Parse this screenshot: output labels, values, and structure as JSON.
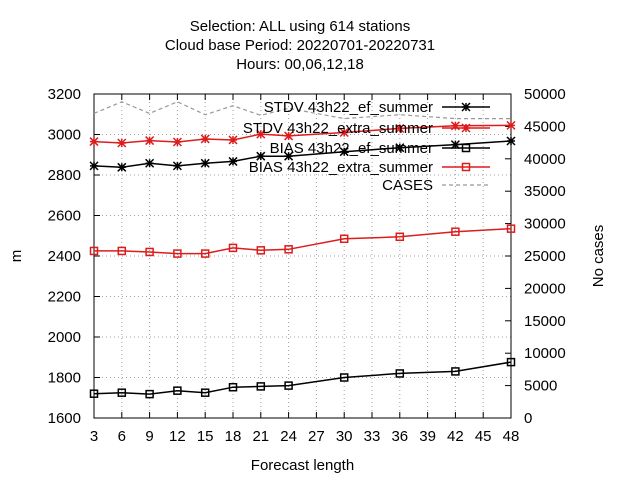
{
  "title_lines": [
    "Selection: ALL using   614 stations",
    "Cloud base   Period: 20220701-20220731",
    "Hours:  00,06,12,18"
  ],
  "chart_data": {
    "type": "line",
    "xlabel": "Forecast length",
    "ylabel": "m",
    "y2label": "No cases",
    "xlim": [
      3,
      48
    ],
    "ylim": [
      1600,
      3200
    ],
    "y2lim": [
      0,
      50000
    ],
    "x_ticks": [
      3,
      6,
      9,
      12,
      15,
      18,
      21,
      24,
      27,
      30,
      33,
      36,
      39,
      42,
      45,
      48
    ],
    "y_ticks": [
      1600,
      1800,
      2000,
      2200,
      2400,
      2600,
      2800,
      3000,
      3200
    ],
    "y2_ticks": [
      0,
      5000,
      10000,
      15000,
      20000,
      25000,
      30000,
      35000,
      40000,
      45000,
      50000
    ],
    "grid": true,
    "legend_position": "top-right",
    "series": [
      {
        "name": "STDV 43h22_ef_summer",
        "legend_label": "STDV 43h22_ef_summer",
        "color": "#000000",
        "marker": "star",
        "axis": "left",
        "x": [
          3,
          6,
          9,
          12,
          15,
          18,
          21,
          24,
          30,
          36,
          42,
          48
        ],
        "values": [
          2845,
          2838,
          2858,
          2845,
          2858,
          2867,
          2893,
          2893,
          2915,
          2935,
          2950,
          2968
        ]
      },
      {
        "name": "STDV 43h22_extra_summer",
        "legend_label": "STDV 43h22_extra_summer",
        "color": "#dd1c1c",
        "marker": "star",
        "axis": "left",
        "x": [
          3,
          6,
          9,
          12,
          15,
          18,
          21,
          24,
          30,
          36,
          42,
          48
        ],
        "values": [
          2965,
          2958,
          2970,
          2963,
          2978,
          2973,
          3002,
          2993,
          3010,
          3030,
          3043,
          3045
        ]
      },
      {
        "name": "BIAS 43h22_ef_summer",
        "legend_label": "BIAS 43h22_ef_summer",
        "color": "#000000",
        "marker": "square",
        "axis": "left",
        "x": [
          3,
          6,
          9,
          12,
          15,
          18,
          21,
          24,
          30,
          36,
          42,
          48
        ],
        "values": [
          1720,
          1725,
          1718,
          1735,
          1725,
          1752,
          1756,
          1760,
          1800,
          1820,
          1830,
          1876
        ]
      },
      {
        "name": "BIAS 43h22_extra_summer",
        "legend_label": "BIAS 43h22_extra_summer",
        "color": "#dd1c1c",
        "marker": "square",
        "axis": "left",
        "x": [
          3,
          6,
          9,
          12,
          15,
          18,
          21,
          24,
          30,
          36,
          42,
          48
        ],
        "values": [
          2425,
          2425,
          2420,
          2412,
          2412,
          2440,
          2428,
          2433,
          2485,
          2495,
          2520,
          2535
        ]
      },
      {
        "name": "CASES",
        "legend_label": "CASES",
        "color": "#999999",
        "marker": "none",
        "dash": true,
        "axis": "right",
        "x": [
          3,
          6,
          9,
          12,
          15,
          18,
          21,
          24,
          30,
          36,
          42,
          48
        ],
        "values": [
          47000,
          48800,
          47000,
          48800,
          46800,
          48200,
          46700,
          47800,
          46200,
          46800,
          46200,
          46200
        ]
      }
    ]
  }
}
